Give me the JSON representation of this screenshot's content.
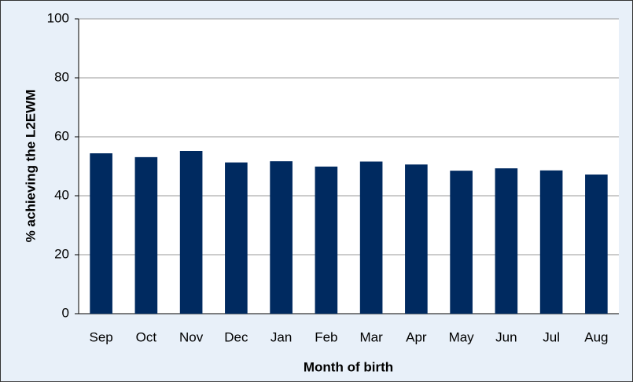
{
  "chart_data": {
    "type": "bar",
    "x_label": "Month of birth",
    "y_label": "% achieving the L2EWM",
    "categories": [
      "Sep",
      "Oct",
      "Nov",
      "Dec",
      "Jan",
      "Feb",
      "Mar",
      "Apr",
      "May",
      "Jun",
      "Jul",
      "Aug"
    ],
    "values": [
      54.4,
      53.1,
      55.2,
      51.3,
      51.7,
      49.9,
      51.6,
      50.6,
      48.5,
      49.3,
      48.6,
      47.2
    ],
    "color": "#002a60",
    "ylim": [
      0,
      100
    ],
    "yticks": [
      0,
      20,
      40,
      60,
      80,
      100
    ],
    "grid": true
  }
}
